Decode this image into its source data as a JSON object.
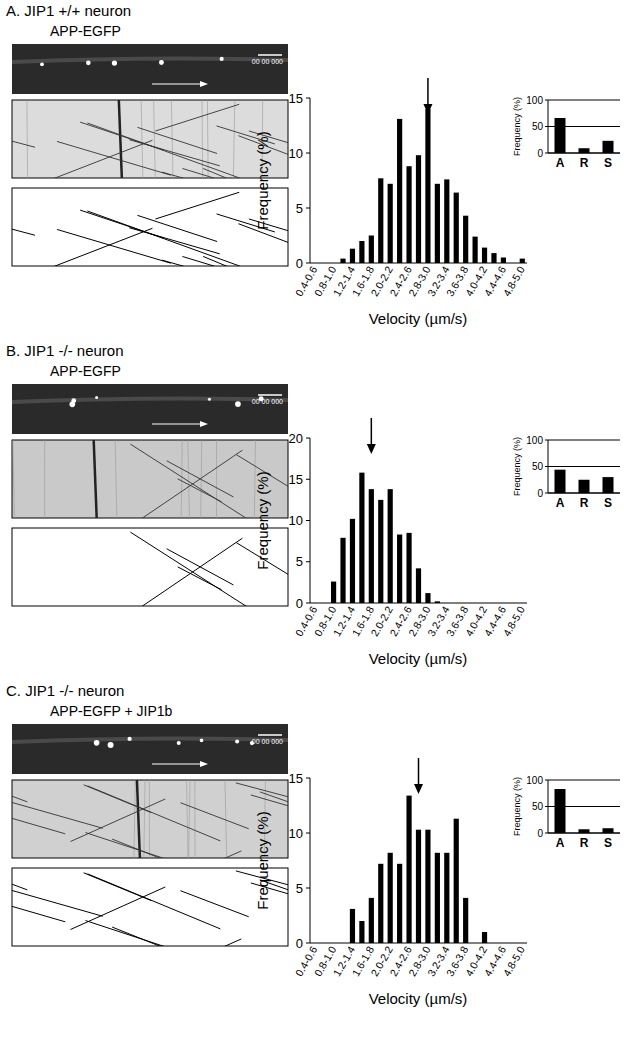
{
  "chart_data": [
    {
      "type": "histogram",
      "title": "A. JIP1 +/+ neuron",
      "subtitle": "APP-EGFP",
      "annotations": [
        "00 00 000"
      ],
      "x_label": "Velocity (µm/s)",
      "y_label": "Frequency (%)",
      "categories": [
        "0.4-0.6",
        null,
        "0.8-1.0",
        null,
        "1.2-1.4",
        null,
        "1.6-1.8",
        null,
        "2.0-2.2",
        null,
        "2.4-2.6",
        null,
        "2.8-3.0",
        null,
        "3.2-3.4",
        null,
        "3.6-3.8",
        null,
        "4.0-4.2",
        null,
        "4.4-4.6",
        null,
        "4.8-5.0"
      ],
      "bins": [
        0.4,
        0.6,
        0.8,
        1.0,
        1.2,
        1.4,
        1.6,
        1.8,
        2.0,
        2.2,
        2.4,
        2.6,
        2.8,
        3.0,
        3.2,
        3.4,
        3.6,
        3.8,
        4.0,
        4.2,
        4.4,
        4.6,
        4.8,
        5.0
      ],
      "values": [
        0,
        0,
        0,
        0.4,
        1.3,
        2.0,
        2.5,
        7.7,
        7.2,
        13.1,
        8.8,
        9.8,
        14.0,
        7.2,
        7.6,
        6.4,
        4.3,
        2.4,
        1.4,
        0.9,
        0.5,
        0,
        0.4
      ],
      "mean": 2.9,
      "color": "#000000",
      "xlim": [
        0.4,
        5.0
      ],
      "ylim": [
        0,
        15
      ],
      "yticks": [
        0,
        5,
        10,
        15
      ],
      "grid": false
    },
    {
      "type": "bar",
      "y_label": "Frequency (%)",
      "categories": [
        "A",
        "R",
        "S"
      ],
      "values": [
        66,
        9,
        23
      ],
      "color": "#000000",
      "ylim": [
        0,
        100
      ],
      "yticks": [
        0,
        50,
        100
      ],
      "grid": true
    },
    {
      "type": "histogram",
      "title": "B. JIP1 -/- neuron",
      "subtitle": "APP-EGFP",
      "annotations": [
        "00 00 000"
      ],
      "x_label": "Velocity (µm/s)",
      "y_label": "Frequency (%)",
      "categories": [
        "0.4-0.6",
        null,
        "0.8-1.0",
        null,
        "1.2-1.4",
        null,
        "1.6-1.8",
        null,
        "2.0-2.2",
        null,
        "2.4-2.6",
        null,
        "2.8-3.0",
        null,
        "3.2-3.4",
        null,
        "3.6-3.8",
        null,
        "4.0-4.2",
        null,
        "4.4-4.6",
        null,
        "4.8-5.0"
      ],
      "bins": [
        0.4,
        0.6,
        0.8,
        1.0,
        1.2,
        1.4,
        1.6,
        1.8,
        2.0,
        2.2,
        2.4,
        2.6,
        2.8,
        3.0,
        3.2,
        3.4,
        3.6,
        3.8,
        4.0,
        4.2,
        4.4,
        4.6,
        4.8,
        5.0
      ],
      "values": [
        0,
        0,
        2.6,
        7.9,
        10.2,
        15.8,
        13.8,
        12.5,
        13.8,
        8.3,
        8.5,
        4.2,
        1.2,
        0.2,
        0,
        0,
        0,
        0,
        0,
        0,
        0,
        0,
        0
      ],
      "mean": 1.7,
      "color": "#000000",
      "xlim": [
        0.4,
        5.0
      ],
      "ylim": [
        0,
        20
      ],
      "yticks": [
        0,
        5,
        10,
        15,
        20
      ],
      "grid": false
    },
    {
      "type": "bar",
      "y_label": "Frequency (%)",
      "categories": [
        "A",
        "R",
        "S"
      ],
      "values": [
        44,
        25,
        30
      ],
      "color": "#000000",
      "ylim": [
        0,
        100
      ],
      "yticks": [
        0,
        50,
        100
      ],
      "grid": true
    },
    {
      "type": "histogram",
      "title": "C. JIP1 -/- neuron",
      "subtitle": "APP-EGFP + JIP1b",
      "annotations": [
        "00 00 000"
      ],
      "x_label": "Velocity (µm/s)",
      "y_label": "Frequency (%)",
      "categories": [
        "0.4-0.6",
        null,
        "0.8-1.0",
        null,
        "1.2-1.4",
        null,
        "1.6-1.8",
        null,
        "2.0-2.2",
        null,
        "2.4-2.6",
        null,
        "2.8-3.0",
        null,
        "3.2-3.4",
        null,
        "3.6-3.8",
        null,
        "4.0-4.2",
        null,
        "4.4-4.6",
        null,
        "4.8-5.0"
      ],
      "bins": [
        0.4,
        0.6,
        0.8,
        1.0,
        1.2,
        1.4,
        1.6,
        1.8,
        2.0,
        2.2,
        2.4,
        2.6,
        2.8,
        3.0,
        3.2,
        3.4,
        3.6,
        3.8,
        4.0,
        4.2,
        4.4,
        4.6,
        4.8,
        5.0
      ],
      "values": [
        0,
        0,
        0,
        0,
        3.1,
        2.0,
        4.1,
        7.2,
        8.2,
        7.2,
        13.4,
        10.3,
        10.3,
        8.2,
        8.2,
        11.3,
        4.1,
        0,
        1.0,
        0,
        0,
        0,
        0
      ],
      "mean": 2.7,
      "color": "#000000",
      "xlim": [
        0.4,
        5.0
      ],
      "ylim": [
        0,
        15
      ],
      "yticks": [
        0,
        5,
        10,
        15
      ],
      "grid": false
    },
    {
      "type": "bar",
      "y_label": "Frequency (%)",
      "categories": [
        "A",
        "R",
        "S"
      ],
      "values": [
        83,
        7,
        9
      ],
      "color": "#000000",
      "ylim": [
        0,
        100
      ],
      "yticks": [
        0,
        50,
        100
      ],
      "grid": true
    }
  ]
}
